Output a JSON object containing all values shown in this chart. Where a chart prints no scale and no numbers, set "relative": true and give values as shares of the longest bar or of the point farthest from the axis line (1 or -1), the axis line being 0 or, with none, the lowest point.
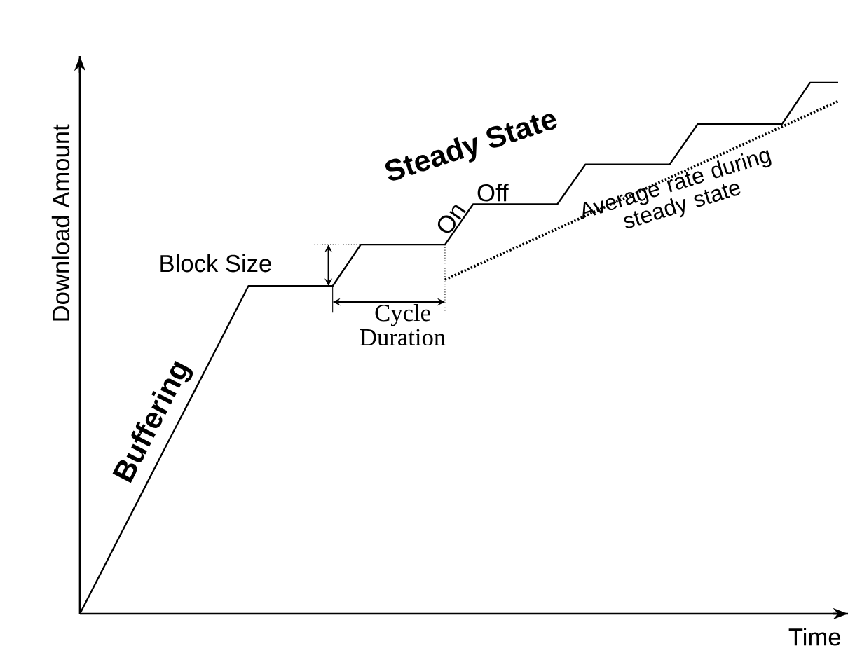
{
  "chart_data": {
    "type": "line",
    "relative": true,
    "xlabel": "Time",
    "ylabel": "Download Amount",
    "categories": [
      null,
      null,
      null,
      null,
      null,
      null,
      null,
      null,
      null,
      null,
      null,
      null,
      null,
      null,
      null,
      null,
      null,
      null,
      null,
      null,
      null,
      null,
      null,
      null,
      null,
      null,
      null,
      null
    ],
    "series": [
      {
        "color": "#000000",
        "values": [
          0,
          0.103,
          0.206,
          0.309,
          0.411,
          0.514,
          0.617,
          0.617,
          0.617,
          0.617,
          0.695,
          0.695,
          0.695,
          0.695,
          0.771,
          0.771,
          0.771,
          0.771,
          0.846,
          0.846,
          0.846,
          0.846,
          0.922,
          0.922,
          0.922,
          0.922,
          1,
          1
        ]
      },
      {
        "type": "line",
        "color": "#000000",
        "line_style": "dotted",
        "values": [
          null,
          null,
          null,
          null,
          null,
          null,
          null,
          null,
          null,
          null,
          null,
          null,
          null,
          0.629,
          0.653,
          0.677,
          0.701,
          0.725,
          0.749,
          0.773,
          0.797,
          0.821,
          0.845,
          0.869,
          0.893,
          0.917,
          0.941,
          0.965
        ]
      }
    ],
    "annotations": [
      "Steady State",
      "Buffering",
      "Block Size",
      "Cycle Duration",
      "On",
      "Off",
      "Average rate during steady state"
    ]
  }
}
